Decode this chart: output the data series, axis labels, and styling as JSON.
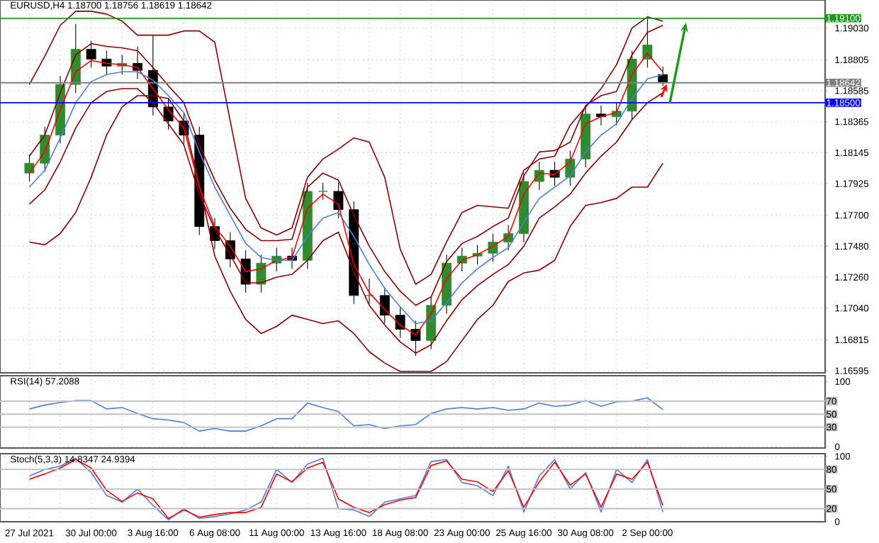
{
  "chart_data": [
    {
      "type": "candlestick",
      "title": "EURUSD,H4  1.18700 1.18756 1.18619 1.18642",
      "categories": [
        null,
        null,
        null,
        null,
        null,
        null,
        null,
        null,
        null,
        null,
        null,
        null,
        null,
        null,
        null,
        null,
        null,
        null,
        null,
        null,
        null,
        null,
        null,
        null,
        null,
        null,
        null,
        null,
        null,
        null,
        null,
        null,
        null,
        null,
        null,
        null,
        null,
        null,
        null,
        null,
        null,
        null
      ],
      "ohlc": [
        [
          1.18,
          1.1813,
          1.1794,
          1.1807
        ],
        [
          1.1807,
          1.1833,
          1.1801,
          1.1827
        ],
        [
          1.1827,
          1.1869,
          1.1821,
          1.1863
        ],
        [
          1.1863,
          1.1906,
          1.1857,
          1.1888
        ],
        [
          1.1888,
          1.1894,
          1.1875,
          1.1881
        ],
        [
          1.1881,
          1.1887,
          1.187,
          1.1876
        ],
        [
          1.1876,
          1.1884,
          1.187,
          1.1878
        ],
        [
          1.1878,
          1.189,
          1.1867,
          1.1873
        ],
        [
          1.1873,
          1.1898,
          1.1841,
          1.1847
        ],
        [
          1.1847,
          1.1853,
          1.1831,
          1.1837
        ],
        [
          1.1837,
          1.1843,
          1.1821,
          1.1827
        ],
        [
          1.1827,
          1.1833,
          1.1756,
          1.1762
        ],
        [
          1.1762,
          1.1768,
          1.1746,
          1.1752
        ],
        [
          1.1752,
          1.1758,
          1.1733,
          1.1739
        ],
        [
          1.1739,
          1.1745,
          1.1715,
          1.1721
        ],
        [
          1.1721,
          1.1742,
          1.1715,
          1.1736
        ],
        [
          1.1736,
          1.1747,
          1.173,
          1.1741
        ],
        [
          1.1741,
          1.1747,
          1.1732,
          1.1738
        ],
        [
          1.1738,
          1.1793,
          1.1732,
          1.1787
        ],
        [
          1.1787,
          1.1793,
          1.1781,
          1.1787
        ],
        [
          1.1787,
          1.1793,
          1.1768,
          1.1774
        ],
        [
          1.1774,
          1.178,
          1.1707,
          1.1713
        ],
        [
          1.1713,
          1.1725,
          1.1707,
          1.1713
        ],
        [
          1.1713,
          1.1719,
          1.1693,
          1.1699
        ],
        [
          1.1699,
          1.1705,
          1.1683,
          1.1689
        ],
        [
          1.1689,
          1.1695,
          1.167,
          1.1681
        ],
        [
          1.1681,
          1.1712,
          1.1675,
          1.1706
        ],
        [
          1.1706,
          1.1742,
          1.17,
          1.1736
        ],
        [
          1.1736,
          1.1747,
          1.173,
          1.1741
        ],
        [
          1.1741,
          1.1749,
          1.1735,
          1.1743
        ],
        [
          1.1743,
          1.1757,
          1.1737,
          1.1751
        ],
        [
          1.1751,
          1.1763,
          1.1745,
          1.1757
        ],
        [
          1.1757,
          1.18,
          1.1751,
          1.1794
        ],
        [
          1.1794,
          1.1808,
          1.1788,
          1.1802
        ],
        [
          1.1802,
          1.1808,
          1.1791,
          1.1797
        ],
        [
          1.1797,
          1.1816,
          1.1791,
          1.181
        ],
        [
          1.181,
          1.1848,
          1.1804,
          1.1842
        ],
        [
          1.1842,
          1.1848,
          1.1834,
          1.184
        ],
        [
          1.184,
          1.185,
          1.1834,
          1.1844
        ],
        [
          1.1844,
          1.1887,
          1.1838,
          1.1881
        ],
        [
          1.1881,
          1.191,
          1.1875,
          1.1891
        ],
        [
          1.187,
          1.18756,
          1.18619,
          1.18642
        ]
      ],
      "colors": [
        "#2e8b2e",
        "#2e8b2e",
        "#2e8b2e",
        "#2e8b2e",
        "#000000",
        "#000000",
        "#2e8b2e",
        "#000000",
        "#000000",
        "#000000",
        "#000000",
        "#000000",
        "#000000",
        "#000000",
        "#000000",
        "#2e8b2e",
        "#2e8b2e",
        "#000000",
        "#2e8b2e",
        "#2e8b2e",
        "#000000",
        "#000000",
        "#2e8b2e",
        "#000000",
        "#000000",
        "#000000",
        "#2e8b2e",
        "#2e8b2e",
        "#2e8b2e",
        "#2e8b2e",
        "#2e8b2e",
        "#2e8b2e",
        "#2e8b2e",
        "#2e8b2e",
        "#000000",
        "#2e8b2e",
        "#2e8b2e",
        "#000000",
        "#2e8b2e",
        "#2e8b2e",
        "#2e8b2e",
        "#000000"
      ],
      "series": [
        {
          "type": "line",
          "color": "#8b0000",
          "values": [
            1.1863,
            1.1883,
            1.1905,
            1.1915,
            1.1915,
            1.1913,
            1.1908,
            1.1898,
            1.1898,
            1.1898,
            1.1901,
            1.1901,
            1.1893,
            1.1837,
            1.1782,
            1.1761,
            1.1756,
            1.1761,
            1.1797,
            1.181,
            1.1817,
            1.1825,
            1.1822,
            1.1797,
            1.1746,
            1.1721,
            1.1728,
            1.1751,
            1.1772,
            1.1777,
            1.1776,
            1.1775,
            1.1802,
            1.181,
            1.1812,
            1.1834,
            1.1847,
            1.186,
            1.1877,
            1.1903,
            1.1911,
            1.1908
          ]
        },
        {
          "type": "line",
          "color": "#8b0000",
          "values": [
            1.1751,
            1.1749,
            1.1757,
            1.1772,
            1.1797,
            1.1827,
            1.1847,
            1.1855,
            1.1855,
            1.1853,
            1.1837,
            1.1792,
            1.1741,
            1.1716,
            1.1696,
            1.1686,
            1.1691,
            1.1699,
            1.1696,
            1.1693,
            1.1695,
            1.1686,
            1.1673,
            1.1665,
            1.1659,
            1.1659,
            1.1659,
            1.1666,
            1.1681,
            1.1696,
            1.1706,
            1.1723,
            1.1729,
            1.1731,
            1.1738,
            1.1762,
            1.1777,
            1.1779,
            1.1782,
            1.179,
            1.179,
            1.1807
          ]
        },
        {
          "type": "line",
          "color": "#8b0000",
          "values": [
            1.1812,
            1.1827,
            1.1857,
            1.1884,
            1.1892,
            1.189,
            1.1889,
            1.1887,
            1.1875,
            1.1862,
            1.185,
            1.182,
            1.1795,
            1.1775,
            1.176,
            1.1752,
            1.1752,
            1.1753,
            1.179,
            1.18,
            1.1795,
            1.177,
            1.1748,
            1.173,
            1.1716,
            1.1706,
            1.1712,
            1.1737,
            1.175,
            1.1755,
            1.1762,
            1.1768,
            1.1798,
            1.1815,
            1.1816,
            1.1822,
            1.1848,
            1.1855,
            1.1858,
            1.1884,
            1.19,
            1.1905
          ]
        },
        {
          "type": "line",
          "color": "#8b0000",
          "values": [
            1.1778,
            1.1788,
            1.1808,
            1.1832,
            1.185,
            1.1858,
            1.186,
            1.186,
            1.185,
            1.1835,
            1.182,
            1.1785,
            1.176,
            1.1742,
            1.1722,
            1.1722,
            1.1726,
            1.1728,
            1.1738,
            1.1752,
            1.1758,
            1.173,
            1.1706,
            1.1692,
            1.168,
            1.1672,
            1.1678,
            1.1695,
            1.171,
            1.172,
            1.1728,
            1.1735,
            1.1748,
            1.1768,
            1.1776,
            1.1785,
            1.18,
            1.1812,
            1.1822,
            1.1838,
            1.185,
            1.1857
          ]
        },
        {
          "type": "line",
          "color": "#ff0000",
          "values": [
            1.18,
            1.1815,
            1.1845,
            1.1872,
            1.188,
            1.1878,
            1.1877,
            1.1875,
            1.186,
            1.1845,
            1.1832,
            1.179,
            1.1762,
            1.1748,
            1.173,
            1.1732,
            1.1738,
            1.174,
            1.1775,
            1.1785,
            1.1778,
            1.1735,
            1.1715,
            1.1703,
            1.1692,
            1.1685,
            1.17,
            1.1725,
            1.1738,
            1.1742,
            1.1748,
            1.1755,
            1.1785,
            1.18,
            1.1799,
            1.1808,
            1.1835,
            1.184,
            1.1843,
            1.187,
            1.1885,
            1.1872
          ]
        },
        {
          "type": "line",
          "color": "#4a7fe0",
          "values": [
            1.179,
            1.1802,
            1.1825,
            1.185,
            1.1865,
            1.187,
            1.1872,
            1.1872,
            1.1866,
            1.1855,
            1.1843,
            1.1815,
            1.179,
            1.177,
            1.175,
            1.174,
            1.1738,
            1.1738,
            1.1755,
            1.1768,
            1.1772,
            1.1755,
            1.1735,
            1.1718,
            1.1705,
            1.1693,
            1.1695,
            1.1708,
            1.1722,
            1.1732,
            1.174,
            1.1747,
            1.1765,
            1.1782,
            1.179,
            1.1798,
            1.1815,
            1.1827,
            1.1835,
            1.1853,
            1.1867,
            1.187
          ]
        }
      ],
      "ylim": [
        1.1658,
        1.1923
      ],
      "yticks": [
        {
          "value": 1.1903,
          "label": "1.19030"
        },
        {
          "value": 1.18805,
          "label": "1.18805"
        },
        {
          "value": 1.18585,
          "label": "1.18585"
        },
        {
          "value": 1.18365,
          "label": "1.18365"
        },
        {
          "value": 1.18145,
          "label": "1.18145"
        },
        {
          "value": 1.17925,
          "label": "1.17925"
        },
        {
          "value": 1.177,
          "label": "1.17700"
        },
        {
          "value": 1.1748,
          "label": "1.17480"
        },
        {
          "value": 1.1726,
          "label": "1.17260"
        },
        {
          "value": 1.1704,
          "label": "1.17040"
        },
        {
          "value": 1.16815,
          "label": "1.16815"
        },
        {
          "value": 1.16595,
          "label": "1.16595"
        }
      ],
      "ref_lines": [
        {
          "axis": "y",
          "value": 1.191,
          "label": "1.19100",
          "color": "#1f9a1f"
        },
        {
          "axis": "y",
          "value": 1.18642,
          "label": "1.18642",
          "color": "#808080"
        },
        {
          "axis": "y",
          "value": 1.185,
          "label": "1.18500",
          "color": "#0000ff"
        }
      ],
      "grid": true,
      "tick_labels": "y"
    },
    {
      "type": "line",
      "title": "RSI(14) 57.2088",
      "categories": [
        null,
        null,
        null,
        null,
        null,
        null,
        null,
        null,
        null,
        null,
        null,
        null,
        null,
        null,
        null,
        null,
        null,
        null,
        null,
        null,
        null,
        null,
        null,
        null,
        null,
        null,
        null,
        null,
        null,
        null,
        null,
        null,
        null,
        null,
        null,
        null,
        null,
        null,
        null,
        null,
        null,
        null
      ],
      "series": [
        {
          "color": "#4a7fe0",
          "values": [
            58,
            64,
            68,
            71,
            71,
            58,
            60,
            51,
            43,
            41,
            37,
            24,
            28,
            24,
            24,
            32,
            43,
            43,
            67,
            60,
            54,
            32,
            34,
            28,
            32,
            34,
            51,
            58,
            60,
            58,
            60,
            56,
            58,
            67,
            62,
            64,
            71,
            62,
            69,
            70,
            75,
            57
          ]
        }
      ],
      "ylim": [
        -2,
        109
      ],
      "yticks": [
        100,
        0
      ],
      "ref_lines": [
        {
          "axis": "y",
          "value": 70,
          "label": "70",
          "color": "#c0c0c0"
        },
        {
          "axis": "y",
          "value": 50,
          "label": "50",
          "color": "#c0c0c0"
        },
        {
          "axis": "y",
          "value": 30,
          "label": "30",
          "color": "#c0c0c0"
        }
      ],
      "grid": true,
      "tick_labels": "y"
    },
    {
      "type": "line",
      "title": "Stoch(5,3,3) 14.8347 24.9394",
      "categories": [
        "27 Jul 2021",
        null,
        null,
        null,
        "30 Jul 00:00",
        null,
        null,
        null,
        "3 Aug 16:00",
        null,
        null,
        null,
        "6 Aug 08:00",
        null,
        null,
        null,
        "11 Aug 00:00",
        null,
        null,
        null,
        "13 Aug 16:00",
        null,
        null,
        null,
        "18 Aug 08:00",
        null,
        null,
        null,
        "23 Aug 00:00",
        null,
        null,
        null,
        "25 Aug 16:00",
        null,
        null,
        null,
        "30 Aug 08:00",
        null,
        null,
        null,
        "2 Sep 00:00",
        null
      ],
      "series": [
        {
          "color": "#4a7fe0",
          "values": [
            70,
            80,
            85,
            97,
            75,
            40,
            30,
            50,
            25,
            3,
            20,
            5,
            8,
            12,
            18,
            30,
            80,
            60,
            88,
            97,
            20,
            18,
            8,
            30,
            35,
            40,
            92,
            95,
            60,
            55,
            40,
            85,
            15,
            70,
            95,
            50,
            75,
            15,
            80,
            60,
            95,
            15
          ]
        },
        {
          "color": "#ff0000",
          "values": [
            65,
            73,
            82,
            95,
            82,
            48,
            31,
            44,
            35,
            5,
            18,
            7,
            11,
            14,
            14,
            22,
            73,
            61,
            82,
            91,
            35,
            22,
            14,
            26,
            33,
            37,
            86,
            93,
            65,
            61,
            46,
            78,
            22,
            61,
            91,
            56,
            73,
            22,
            73,
            65,
            91,
            25
          ]
        }
      ],
      "ylim": [
        0,
        104
      ],
      "yticks": [
        100,
        0
      ],
      "ref_lines": [
        {
          "axis": "y",
          "value": 80,
          "label": "80",
          "color": "#c0c0c0"
        },
        {
          "axis": "y",
          "value": 50,
          "label": "50",
          "color": "#c0c0c0"
        },
        {
          "axis": "y",
          "value": 20,
          "label": "20",
          "color": "#c0c0c0"
        }
      ],
      "grid": true
    }
  ]
}
